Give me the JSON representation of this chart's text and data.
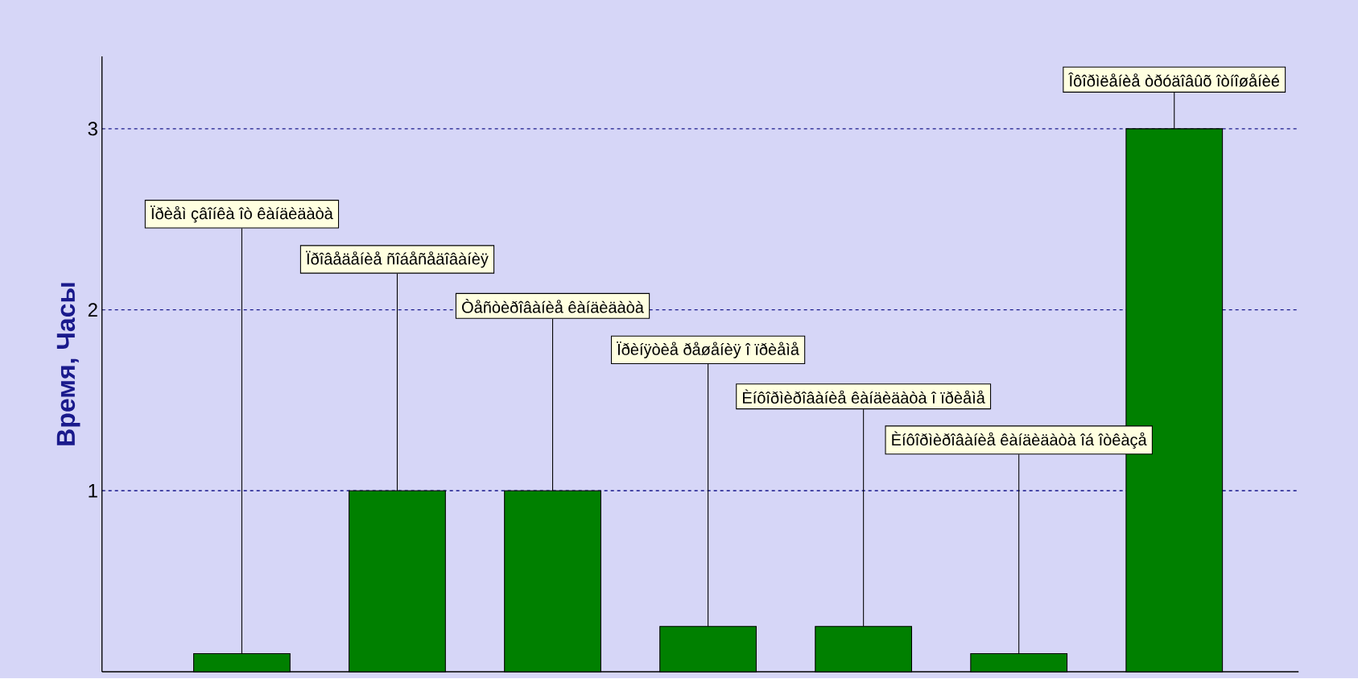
{
  "chart_data": {
    "type": "bar",
    "ylabel": "Время, Часы",
    "categories": [
      null,
      null,
      null,
      null,
      null,
      null,
      null
    ],
    "values": [
      0.1,
      1,
      1,
      0.25,
      0.25,
      0.1,
      3
    ],
    "color": "#008000",
    "ylim": [
      0,
      3.4
    ],
    "yticks": [
      1,
      2,
      3
    ],
    "grid": "y",
    "annotations": [
      {
        "text": "Ïðèåì çâîíêà îò êàíäèäàòà",
        "y": 0.1
      },
      {
        "text": "Ïðîâåäåíèå ñîáåñåäîâàíèÿ",
        "y": 1
      },
      {
        "text": "Òåñòèðîâàíèå êàíäèäàòà",
        "y": 1
      },
      {
        "text": "Ïðèíÿòèå ðåøåíèÿ î ïðèåìå",
        "y": 0.25
      },
      {
        "text": "Èíôîðìèðîâàíèå êàíäèäàòà î ïðèåìå",
        "y": 0.25
      },
      {
        "text": "Èíôîðìèðîâàíèå êàíäèäàòà îá îòêàçå",
        "y": 0.1
      },
      {
        "text": "Îôîðìëåíèå òðóäîâûõ îòíîøåíèé",
        "y": 3
      }
    ]
  }
}
